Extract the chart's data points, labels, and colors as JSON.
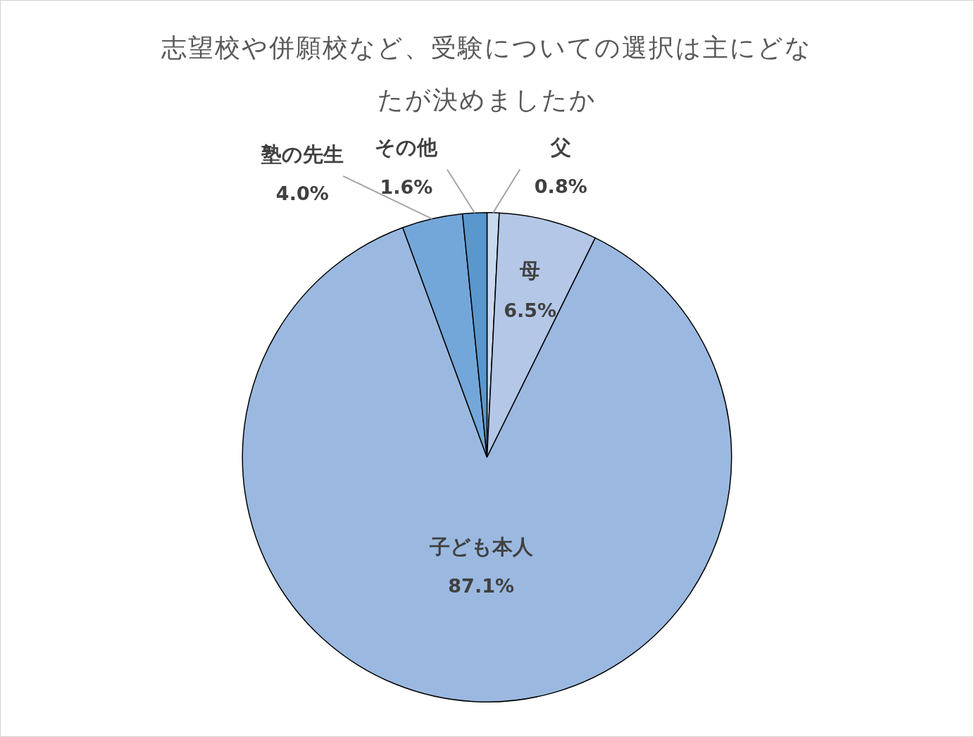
{
  "chart_data": {
    "type": "pie",
    "title": "志望校や併願校など、受験についての選択は主にどなたが決めましたか",
    "categories": [
      "父",
      "母",
      "子ども本人",
      "塾の先生",
      "その他"
    ],
    "values": [
      0.8,
      6.5,
      87.1,
      4.0,
      1.6
    ],
    "colors": [
      "#c9d9ef",
      "#b4c7e7",
      "#9bb9e0",
      "#74a7d9",
      "#5a97cd"
    ],
    "value_labels": [
      "0.8%",
      "6.5%",
      "87.1%",
      "4.0%",
      "1.6%"
    ],
    "legend": false
  }
}
